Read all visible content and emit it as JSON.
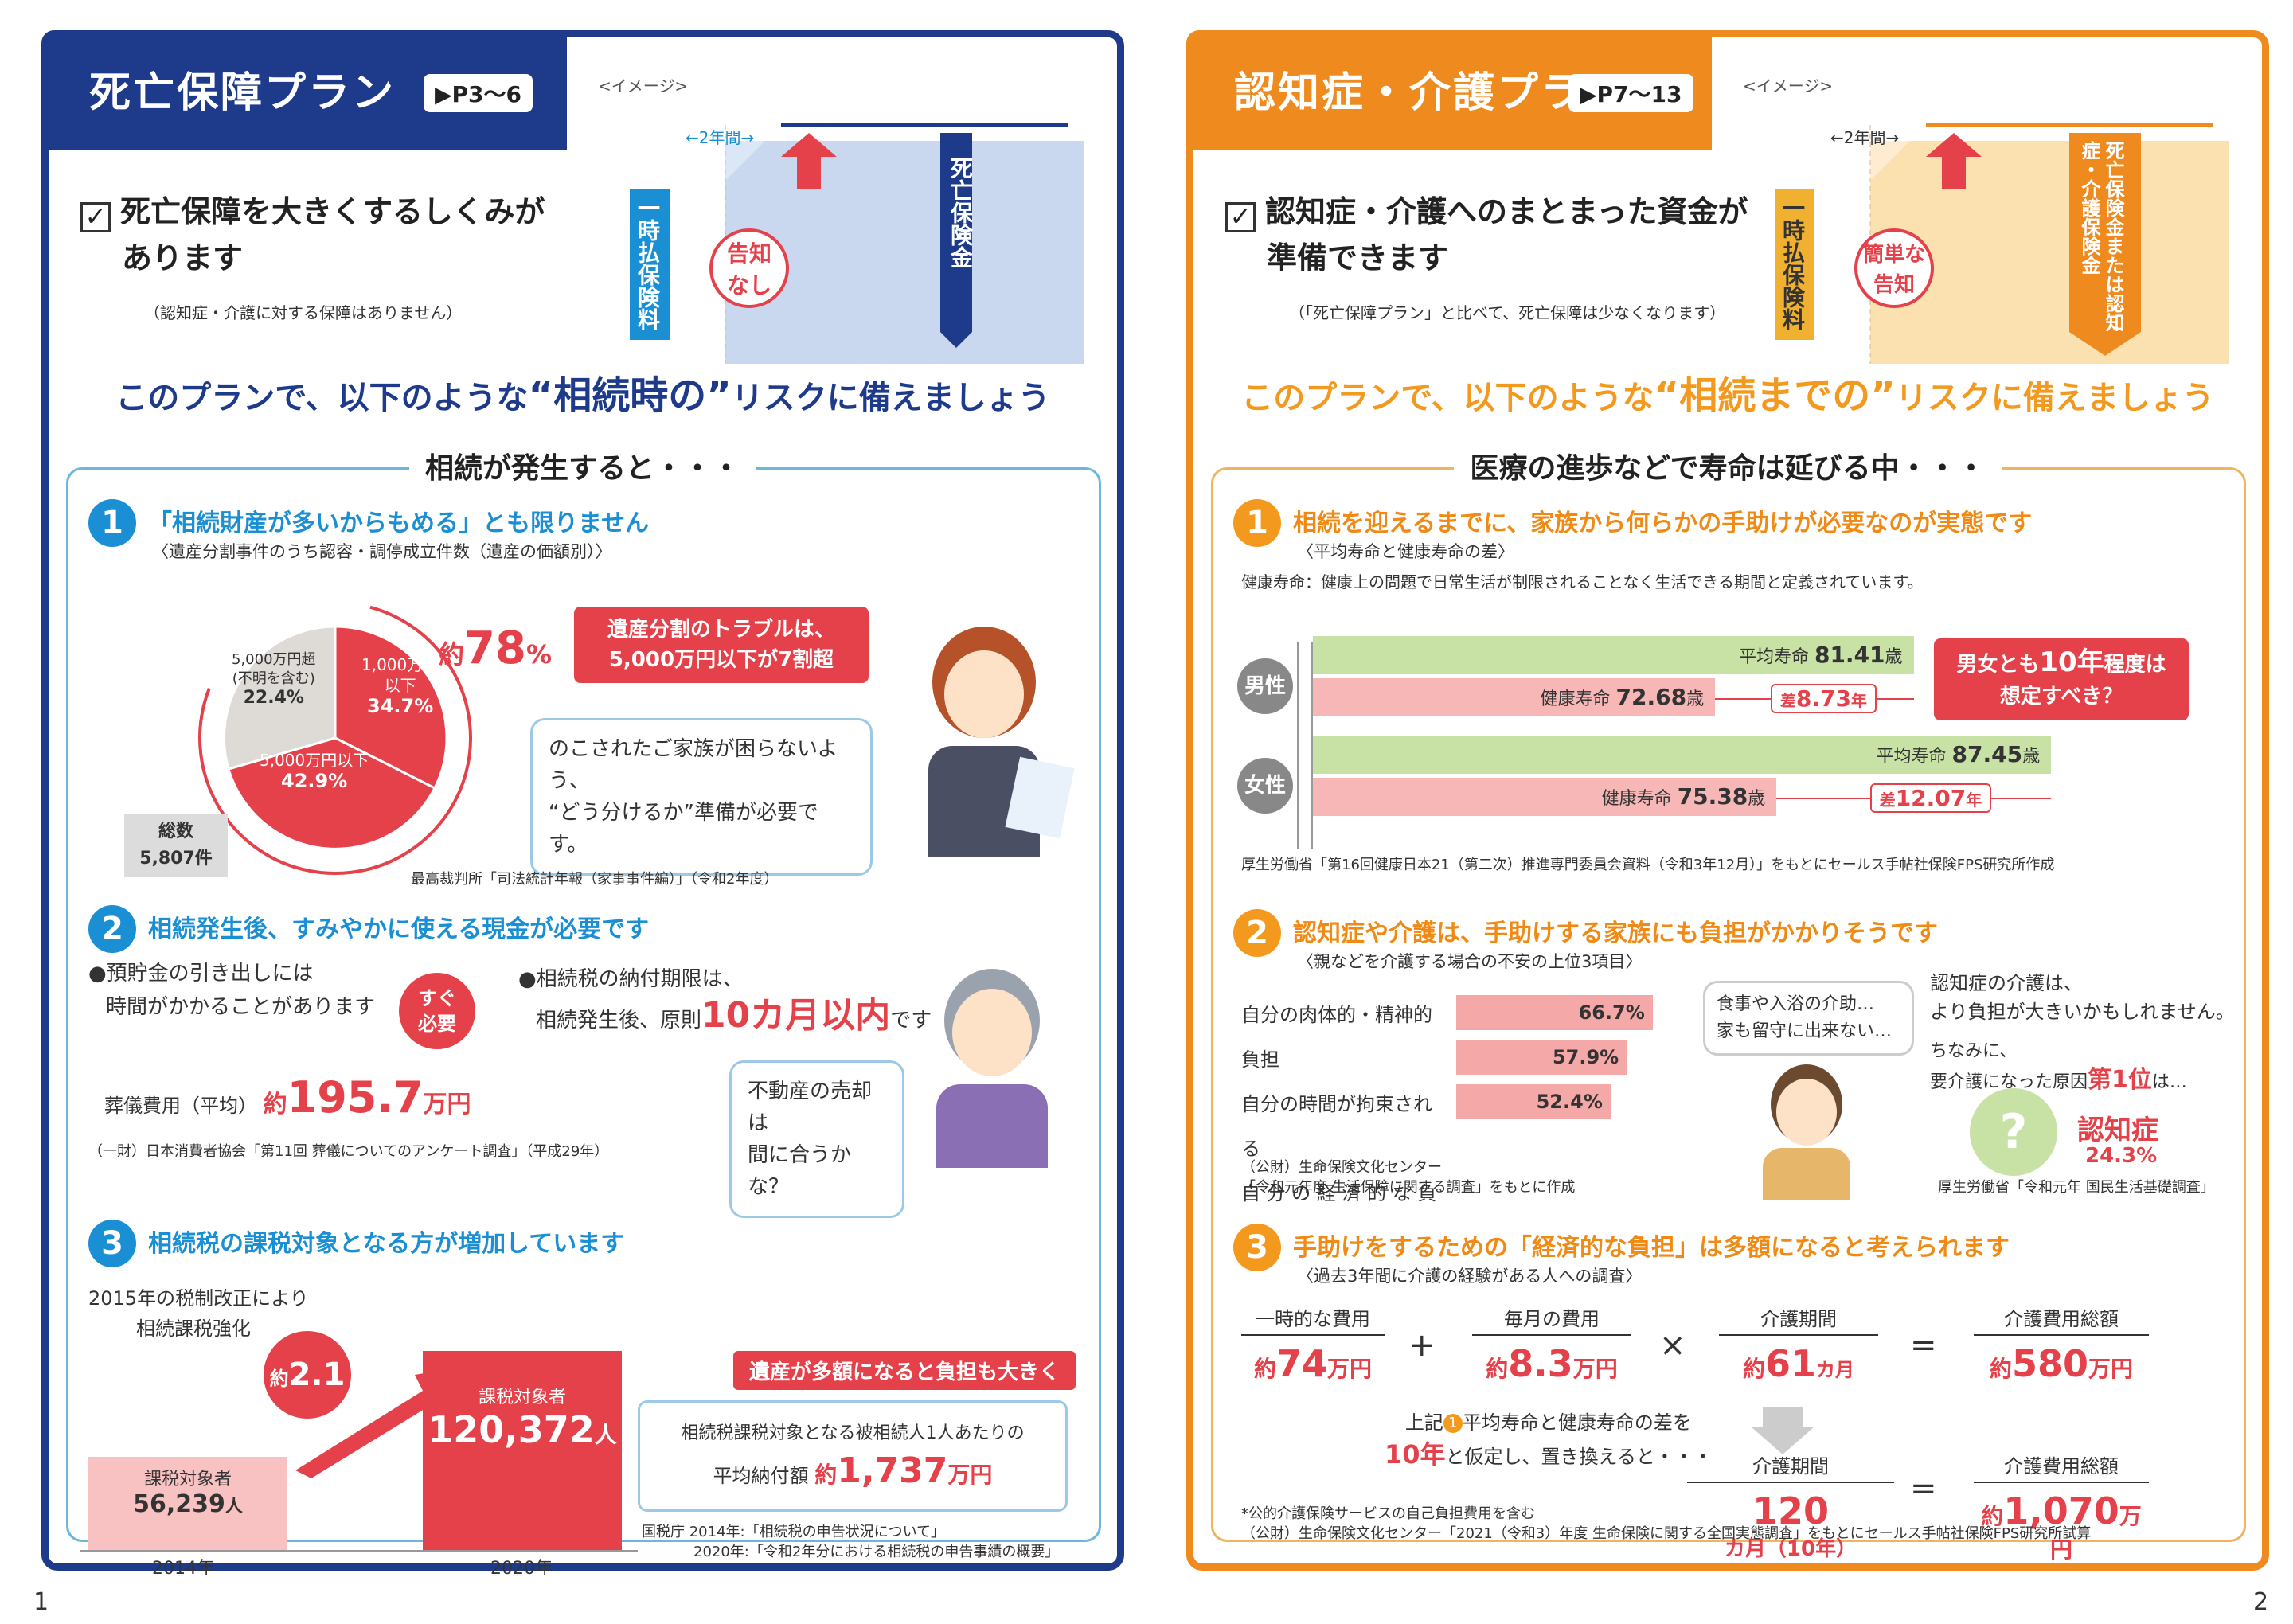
{
  "left": {
    "tab_title": "死亡保障プラン",
    "page_ref": "▶P3〜6",
    "image_label": "<イメージ>",
    "heading_line1": "死亡保障を大きくするしくみが",
    "heading_line2": "あります",
    "note": "（認知症・介護に対する保障はありません）",
    "diagram": {
      "span": "←2年間→",
      "lump": "一時払保険料",
      "no_notice1": "告知",
      "no_notice2": "なし",
      "death_benefit": "死亡保険金"
    },
    "tagline_pre": "このプランで、以下のような",
    "tagline_key": "“相続時の”",
    "tagline_post": "リスクに備えましょう",
    "box_title": "相続が発生すると・・・",
    "s1": {
      "num": "1",
      "title": "「相続財産が多いからもめる」とも限りません",
      "sub": "〈遺産分割事件のうち認容・調停成立件数（遺産の価額別）〉",
      "pct_prefix": "約",
      "pct": "78",
      "pct_unit": "%",
      "callout1": "遺産分割のトラブルは、",
      "callout2": "5,000万円以下が7割超",
      "slices": [
        {
          "label1": "1,000万円",
          "label2": "以下",
          "value": "34.7%"
        },
        {
          "label1": "5,000万円以下",
          "label2": "",
          "value": "42.9%"
        },
        {
          "label1": "5,000万円超",
          "label2": "(不明を含む)",
          "value": "22.4%"
        }
      ],
      "total_label": "総数",
      "total": "5,807件",
      "bubble1": "のこされたご家族が困らないよう、",
      "bubble2": "“どう分けるか”準備が必要です。",
      "source": "最高裁判所「司法統計年報（家事事件編）」（令和2年度）"
    },
    "s2": {
      "num": "2",
      "title": "相続発生後、すみやかに使える現金が必要です",
      "a1": "●預貯金の引き出しには",
      "a2": "時間がかかることがあります",
      "badge1": "すぐ",
      "badge2": "必要",
      "cost_label": "葬儀費用（平均）",
      "cost_pre": "約",
      "cost": "195.7",
      "cost_unit": "万円",
      "b1": "●相続税の納付期限は、",
      "b2": "相続発生後、原則",
      "b2_big": "10カ月以内",
      "b2_tail": "です",
      "bubble1": "不動産の売却は",
      "bubble2": "間に合うかな？",
      "source": "（一財）日本消費者協会「第11回 葬儀についてのアンケート調査」（平成29年）"
    },
    "s3": {
      "num": "3",
      "title": "相続税の課税対象となる方が増加しています",
      "reform1": "2015年の税制改正により",
      "reform2": "相続課税強化",
      "mult_pre": "約",
      "mult": "2.1",
      "mult_unit": "倍",
      "bar_label": "課税対象者",
      "v2014": "56,239",
      "v2020": "120,372",
      "unit": "人",
      "y2014": "2014年",
      "y2020": "2020年",
      "callout": "遺産が多額になると負担も大きく",
      "avg1": "相続税課税対象となる被相続人1人あたりの",
      "avg2_label": "平均納付額",
      "avg_pre": "約",
      "avg": "1,737",
      "avg_unit": "万円",
      "src1": "国税庁 2014年:「相続税の申告状況について」",
      "src2": "2020年:「令和2年分における相続税の申告事績の概要」"
    },
    "page": "1"
  },
  "right": {
    "tab_title": "認知症・介護プラン",
    "page_ref": "▶P7〜13",
    "image_label": "<イメージ>",
    "heading_line1": "認知症・介護へのまとまった資金が",
    "heading_line2": "準備できます",
    "note": "（「死亡保障プラン」と比べて、死亡保障は少なくなります）",
    "diagram": {
      "span": "←2年間→",
      "lump": "一時払保険料",
      "easy1": "簡単な",
      "easy2": "告知",
      "benefit": "死亡保険金または認知症・介護保険金"
    },
    "tagline_pre": "このプランで、以下のような",
    "tagline_key": "“相続までの”",
    "tagline_post": "リスクに備えましょう",
    "box_title": "医療の進歩などで寿命は延びる中・・・",
    "s1": {
      "num": "1",
      "title": "相続を迎えるまでに、家族から何らかの手助けが必要なのが実態です",
      "sub": "〈平均寿命と健康寿命の差〉",
      "def": "健康寿命：健康上の問題で日常生活が制限されることなく生活できる期間と定義されています。",
      "male": "男性",
      "female": "女性",
      "avg_label": "平均寿命",
      "healthy_label": "健康寿命",
      "age_unit": "歳",
      "male_avg": "81.41",
      "male_healthy": "72.68",
      "male_gap_pre": "差",
      "male_gap": "8.73",
      "gap_unit": "年",
      "female_avg": "87.45",
      "female_healthy": "75.38",
      "female_gap": "12.07",
      "callout1": "男女とも",
      "callout_big": "10年",
      "callout2": "程度は",
      "callout3": "想定すべき？",
      "source": "厚生労働省「第16回健康日本21（第二次）推進専門委員会資料（令和3年12月）」をもとにセールス手帖社保険FPS研究所作成"
    },
    "s2": {
      "num": "2",
      "title": "認知症や介護は、手助けする家族にも負担がかかりそうです",
      "sub": "〈親などを介護する場合の不安の上位3項目〉",
      "items": [
        {
          "label": "自分の肉体的・精神的負担",
          "value": "66.7%"
        },
        {
          "label": "自分の時間が拘束される",
          "value": "57.9%"
        },
        {
          "label": "自 分 の 経 済 的 な 負 担",
          "value": "52.4%"
        }
      ],
      "bubble1": "食事や入浴の介助…",
      "bubble2": "家も留守に出来ない…",
      "right1": "認知症の介護は、",
      "right2": "より負担が大きいかもしれません。",
      "right3": "ちなみに、",
      "right4": "要介護になった原因",
      "right4_big": "第1位",
      "right4_tail": "は…",
      "dementia": "認知症",
      "dementia_pct": "24.3%",
      "src1": "（公財）生命保険文化センター",
      "src2": "「令和元年度 生活保障に関する調査」をもとに作成",
      "src3": "厚生労働省「令和元年 国民生活基礎調査」"
    },
    "s3": {
      "num": "3",
      "title": "手助けをするための「経済的な負担」は多額になると考えられます",
      "sub": "〈過去3年間に介護の経験がある人への調査〉",
      "h1": "一時的な費用",
      "h2": "毎月の費用",
      "h3": "介護期間",
      "h4": "介護費用総額",
      "v1_pre": "約",
      "v1": "74",
      "v1_unit": "万円",
      "v2_pre": "約",
      "v2": "8.3",
      "v2_unit": "万円",
      "v3_pre": "約",
      "v3": "61",
      "v3_unit": "カ月",
      "v4_pre": "約",
      "v4": "580",
      "v4_unit": "万円",
      "plus": "+",
      "times": "×",
      "eq": "=",
      "rep1": "上記",
      "rep1_b": "平均寿命と健康寿命の差を",
      "rep2_big": "10年",
      "rep2": "と仮定し、置き換えると・・・",
      "h5": "介護期間",
      "h6": "介護費用総額",
      "v5": "120",
      "v5_unit": "カ月（10年）",
      "v6_pre": "約",
      "v6": "1,070",
      "v6_unit": "万円",
      "note": "*公的介護保険サービスの自己負担費用を含む",
      "source": "（公財）生命保険文化センター「2021（令和3）年度 生命保険に関する全国実態調査」をもとにセールス手帖社保険FPS研究所試算"
    },
    "page": "2"
  },
  "colors": {
    "navy": "#1e3a8a",
    "orange": "#ef8a1e",
    "red": "#e4414a",
    "blue": "#1b8fd3"
  }
}
